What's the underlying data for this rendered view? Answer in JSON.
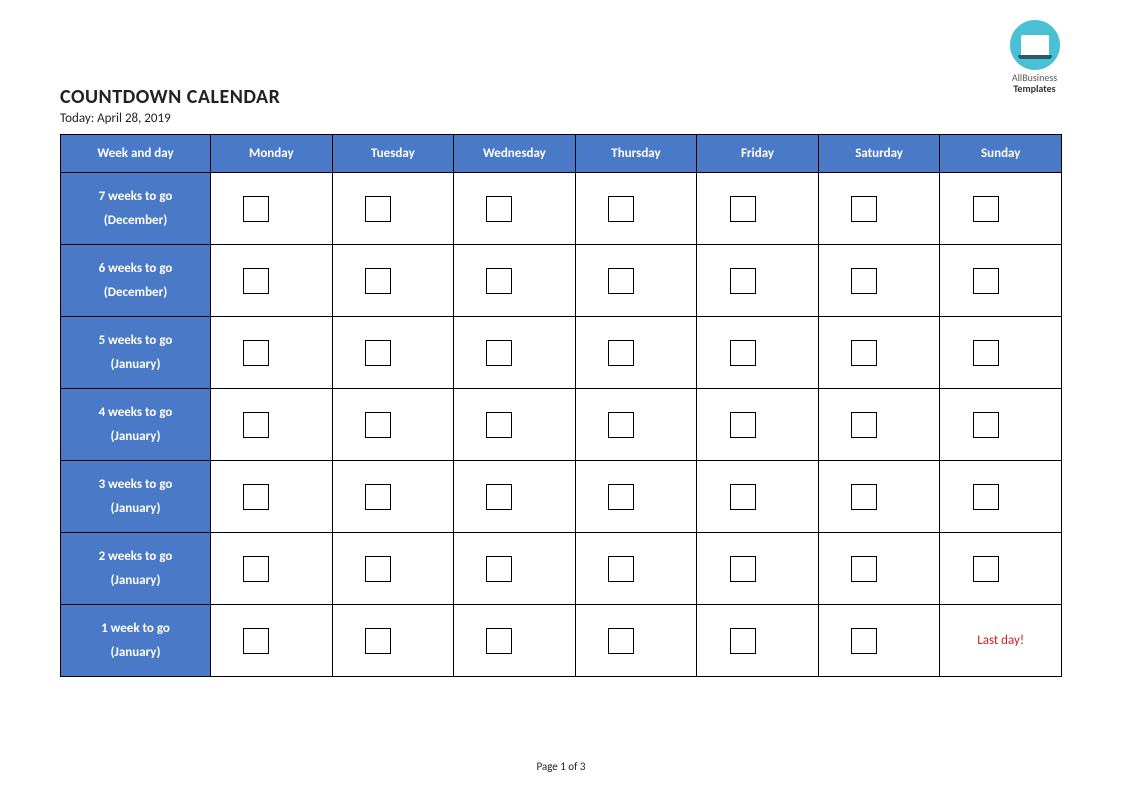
{
  "logo": {
    "brand_line1": "AllBusiness",
    "brand_line2": "Templates"
  },
  "title": "COUNTDOWN CALENDAR",
  "subtitle": "Today: April 28, 2019",
  "table": {
    "header_label": "Week and day",
    "days": [
      "Monday",
      "Tuesday",
      "Wednesday",
      "Thursday",
      "Friday",
      "Saturday",
      "Sunday"
    ],
    "rows": [
      {
        "weeks": "7  weeks to go",
        "month": "(December)",
        "cells": [
          "box",
          "box",
          "box",
          "box",
          "box",
          "box",
          "box"
        ]
      },
      {
        "weeks": "6  weeks to go",
        "month": "(December)",
        "cells": [
          "box",
          "box",
          "box",
          "box",
          "box",
          "box",
          "box"
        ]
      },
      {
        "weeks": "5 weeks to go",
        "month": "(January)",
        "cells": [
          "box",
          "box",
          "box",
          "box",
          "box",
          "box",
          "box"
        ]
      },
      {
        "weeks": "4 weeks to go",
        "month": "(January)",
        "cells": [
          "box",
          "box",
          "box",
          "box",
          "box",
          "box",
          "box"
        ]
      },
      {
        "weeks": "3 weeks to go",
        "month": "(January)",
        "cells": [
          "box",
          "box",
          "box",
          "box",
          "box",
          "box",
          "box"
        ]
      },
      {
        "weeks": "2 weeks to go",
        "month": "(January)",
        "cells": [
          "box",
          "box",
          "box",
          "box",
          "box",
          "box",
          "box"
        ]
      },
      {
        "weeks": "1 week to go",
        "month": "(January)",
        "cells": [
          "box",
          "box",
          "box",
          "box",
          "box",
          "box",
          "last"
        ]
      }
    ],
    "last_day_text": "Last day!"
  },
  "footer": "Page 1 of 3",
  "colors": {
    "header_bg": "#4a7ac7",
    "header_fg": "#ffffff",
    "border": "#000000",
    "last_day": "#d42020",
    "logo_circle": "#4ac0d4"
  }
}
